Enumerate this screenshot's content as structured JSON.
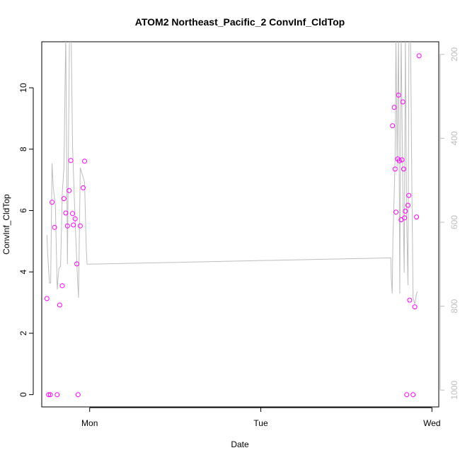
{
  "chart_data": {
    "type": "scatter",
    "title": "ATOM2 Northeast_Pacific_2 ConvInf_CldTop",
    "xlabel": "Date",
    "ylabel": "ConvInf_CldTop",
    "x_ticks": [
      {
        "value": 0.0,
        "label": "Mon"
      },
      {
        "value": 1.0,
        "label": "Tue"
      },
      {
        "value": 2.0,
        "label": "Wed"
      }
    ],
    "y_ticks": [
      0,
      2,
      4,
      6,
      8,
      10
    ],
    "y2_ticks": [
      200,
      400,
      600,
      800,
      1000
    ],
    "xlim": [
      -0.28,
      2.04
    ],
    "ylim": [
      -0.4,
      11.5
    ],
    "y2lim": [
      1040,
      170
    ],
    "y2_reversed": true,
    "grid": false,
    "points_color": "#ff00ff",
    "line_color": "#bdbdbd",
    "points": [
      [
        -0.25,
        3.13
      ],
      [
        -0.24,
        0.0
      ],
      [
        -0.23,
        0.0
      ],
      [
        -0.22,
        6.27
      ],
      [
        -0.205,
        5.45
      ],
      [
        -0.19,
        0.0
      ],
      [
        -0.175,
        2.92
      ],
      [
        -0.16,
        3.55
      ],
      [
        -0.15,
        6.39
      ],
      [
        -0.14,
        5.92
      ],
      [
        -0.13,
        5.5
      ],
      [
        -0.12,
        6.65
      ],
      [
        -0.11,
        7.63
      ],
      [
        -0.1,
        5.9
      ],
      [
        -0.095,
        5.53
      ],
      [
        -0.085,
        5.73
      ],
      [
        -0.075,
        4.26
      ],
      [
        -0.068,
        0.0
      ],
      [
        -0.055,
        5.5
      ],
      [
        -0.038,
        6.74
      ],
      [
        -0.03,
        7.61
      ],
      [
        1.77,
        8.76
      ],
      [
        1.78,
        9.36
      ],
      [
        1.785,
        7.35
      ],
      [
        1.79,
        5.95
      ],
      [
        1.8,
        7.68
      ],
      [
        1.805,
        9.76
      ],
      [
        1.81,
        7.62
      ],
      [
        1.82,
        5.7
      ],
      [
        1.825,
        7.65
      ],
      [
        1.83,
        9.54
      ],
      [
        1.835,
        7.35
      ],
      [
        1.84,
        5.76
      ],
      [
        1.845,
        5.98
      ],
      [
        1.853,
        0.0
      ],
      [
        1.86,
        6.17
      ],
      [
        1.865,
        6.49
      ],
      [
        1.87,
        3.08
      ],
      [
        1.89,
        0.0
      ],
      [
        1.9,
        2.86
      ],
      [
        1.91,
        5.79
      ],
      [
        1.925,
        11.04
      ]
    ],
    "line": [
      [
        -0.25,
        630
      ],
      [
        -0.245,
        680
      ],
      [
        -0.235,
        745
      ],
      [
        -0.228,
        745
      ],
      [
        -0.22,
        460
      ],
      [
        -0.212,
        520
      ],
      [
        -0.2,
        560
      ],
      [
        -0.19,
        760
      ],
      [
        -0.18,
        710
      ],
      [
        -0.17,
        705
      ],
      [
        -0.16,
        530
      ],
      [
        -0.15,
        470
      ],
      [
        -0.14,
        150
      ],
      [
        -0.13,
        700
      ],
      [
        -0.118,
        150
      ],
      [
        -0.108,
        150
      ],
      [
        -0.1,
        420
      ],
      [
        -0.085,
        600
      ],
      [
        -0.07,
        745
      ],
      [
        -0.065,
        780
      ],
      [
        -0.055,
        470
      ],
      [
        -0.04,
        490
      ],
      [
        -0.03,
        505
      ],
      [
        -0.02,
        665
      ],
      [
        -0.015,
        700
      ],
      [
        1.76,
        685
      ],
      [
        1.762,
        730
      ],
      [
        1.768,
        770
      ],
      [
        1.772,
        640
      ],
      [
        1.778,
        560
      ],
      [
        1.785,
        450
      ],
      [
        1.79,
        150
      ],
      [
        1.797,
        470
      ],
      [
        1.805,
        150
      ],
      [
        1.812,
        770
      ],
      [
        1.82,
        150
      ],
      [
        1.83,
        520
      ],
      [
        1.838,
        720
      ],
      [
        1.845,
        150
      ],
      [
        1.852,
        580
      ],
      [
        1.86,
        750
      ],
      [
        1.866,
        150
      ],
      [
        1.875,
        150
      ],
      [
        1.882,
        480
      ],
      [
        1.89,
        780
      ],
      [
        1.9,
        795
      ],
      [
        1.91,
        770
      ],
      [
        1.915,
        765
      ]
    ]
  }
}
